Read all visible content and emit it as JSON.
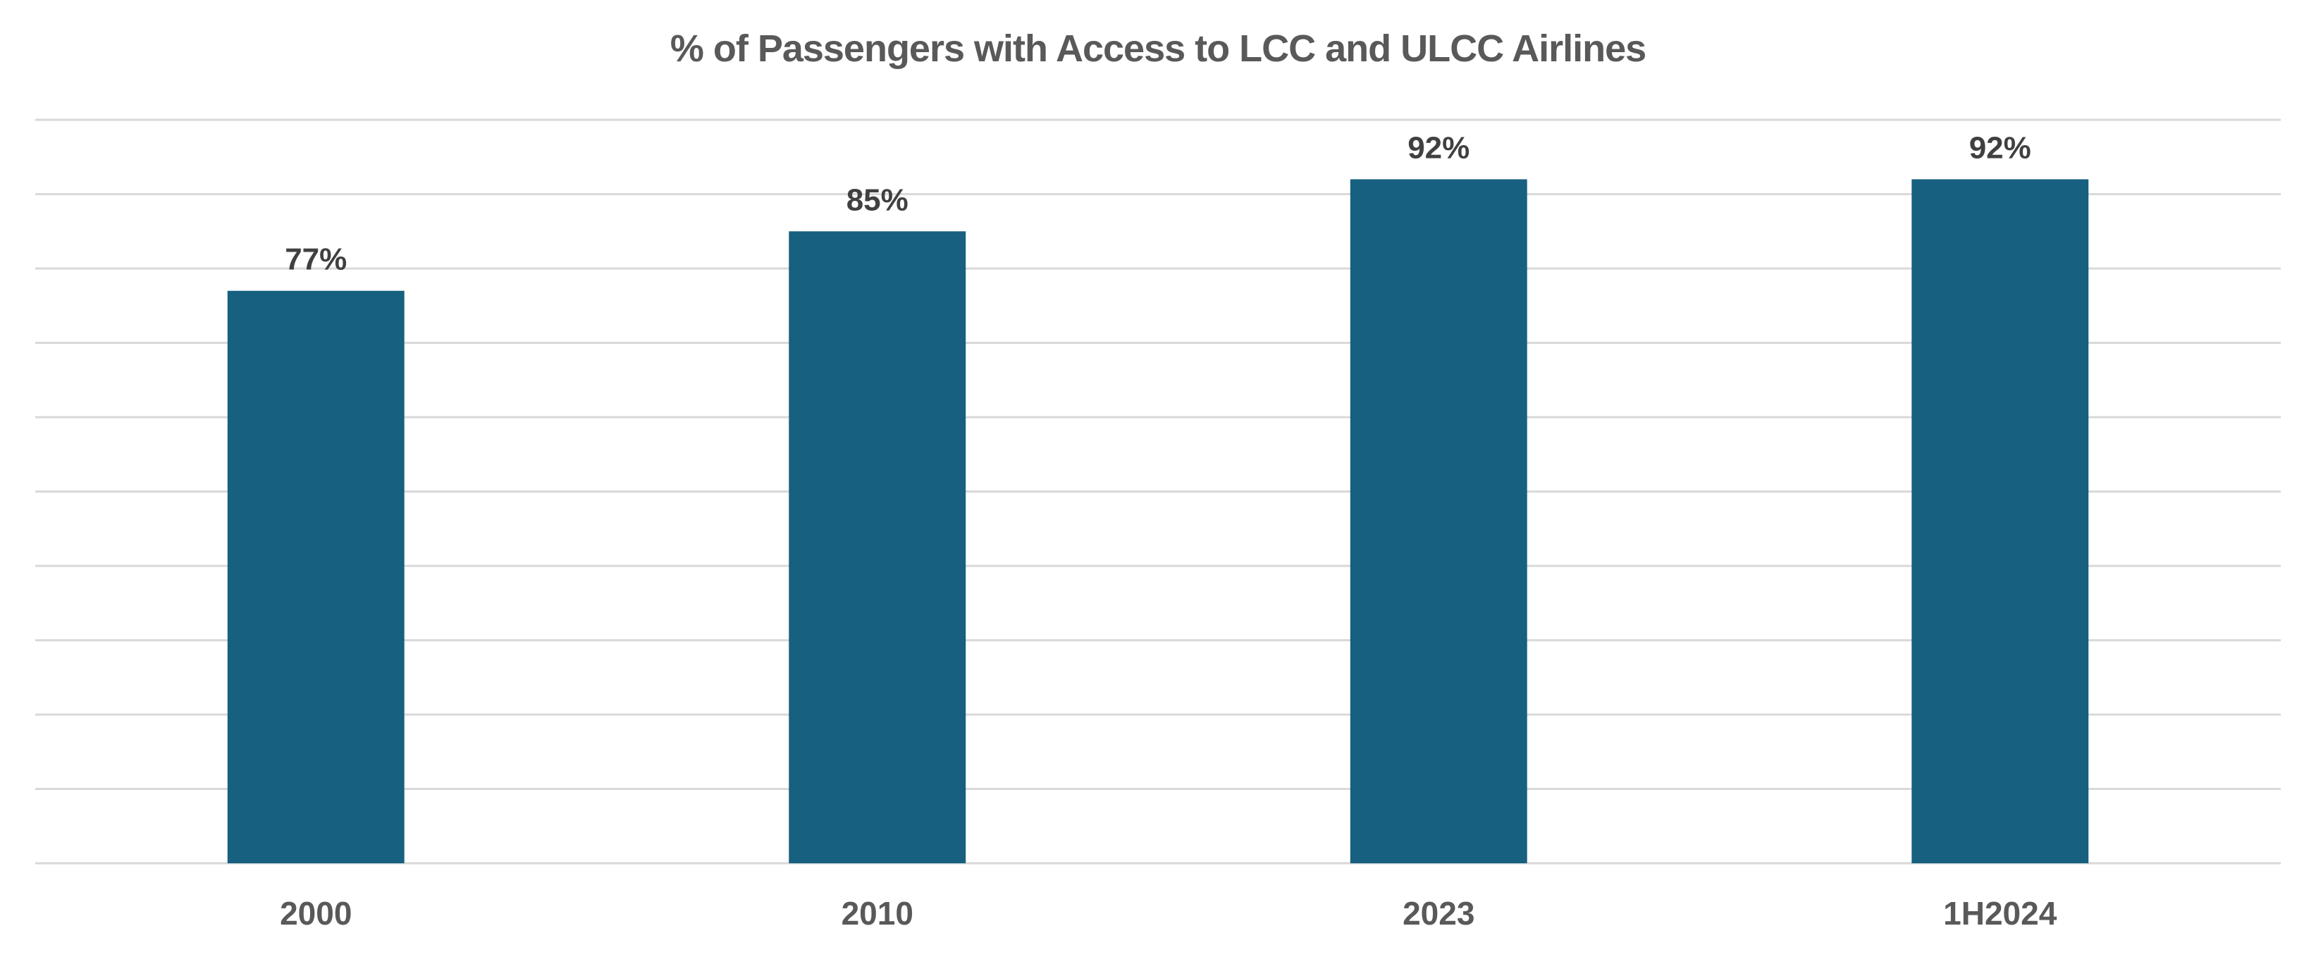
{
  "chart_data": {
    "type": "bar",
    "title": "% of Passengers with Access to LCC and ULCC Airlines",
    "categories": [
      "2000",
      "2010",
      "2023",
      "1H2024"
    ],
    "values": [
      77,
      85,
      92,
      92
    ],
    "data_labels": [
      "77%",
      "85%",
      "92%",
      "92%"
    ],
    "xlabel": "",
    "ylabel": "",
    "ylim": [
      0,
      100
    ],
    "y_ticks_visible": false,
    "grid": true,
    "grid_step": 10,
    "legend": "none",
    "bar_color": "#17607F"
  }
}
